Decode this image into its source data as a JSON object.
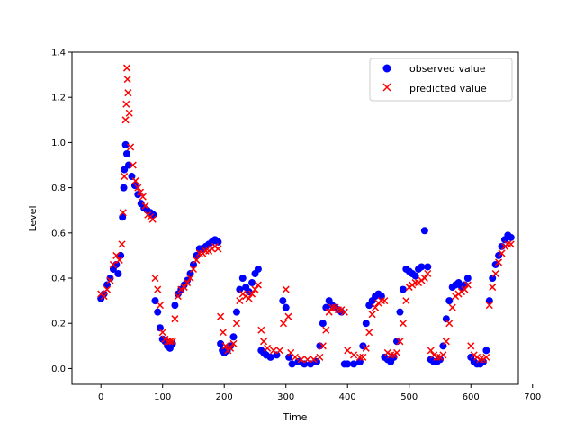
{
  "chart_data": {
    "type": "scatter",
    "title": "",
    "xlabel": "Time",
    "ylabel": "Level",
    "xlim": [
      -47,
      677
    ],
    "ylim": [
      -0.07,
      1.4
    ],
    "xticks": [
      0,
      100,
      200,
      300,
      400,
      500,
      600,
      700
    ],
    "yticks": [
      0.0,
      0.2,
      0.4,
      0.6,
      0.8,
      1.0,
      1.2,
      1.4
    ],
    "xtick_labels": [
      "0",
      "100",
      "200",
      "300",
      "400",
      "500",
      "600",
      "700"
    ],
    "ytick_labels": [
      "0.0",
      "0.2",
      "0.4",
      "0.6",
      "0.8",
      "1.0",
      "1.2",
      "1.4"
    ],
    "legend_position": "top-right",
    "grid": false,
    "series": [
      {
        "name": "observed value",
        "marker": "circle",
        "color": "#0000ff",
        "x": [
          0,
          5,
          10,
          15,
          20,
          25,
          28,
          32,
          35,
          37,
          38,
          40,
          42,
          45,
          50,
          55,
          60,
          65,
          70,
          75,
          80,
          85,
          88,
          92,
          96,
          100,
          104,
          108,
          112,
          116,
          120,
          125,
          130,
          135,
          140,
          145,
          150,
          155,
          160,
          165,
          170,
          175,
          180,
          185,
          190,
          194,
          197,
          200,
          205,
          210,
          215,
          220,
          225,
          230,
          235,
          240,
          245,
          250,
          255,
          260,
          264,
          268,
          275,
          285,
          295,
          300,
          305,
          310,
          320,
          330,
          340,
          350,
          355,
          360,
          365,
          370,
          375,
          380,
          385,
          390,
          395,
          400,
          410,
          420,
          425,
          430,
          435,
          440,
          445,
          450,
          455,
          460,
          465,
          470,
          475,
          480,
          485,
          490,
          495,
          500,
          505,
          510,
          515,
          520,
          525,
          530,
          535,
          540,
          545,
          550,
          555,
          560,
          565,
          570,
          575,
          580,
          585,
          590,
          595,
          600,
          605,
          610,
          615,
          620,
          625,
          630,
          635,
          640,
          645,
          650,
          655,
          660,
          665
        ],
        "y": [
          0.31,
          0.33,
          0.37,
          0.4,
          0.44,
          0.46,
          0.42,
          0.5,
          0.67,
          0.8,
          0.88,
          0.99,
          0.95,
          0.9,
          0.85,
          0.81,
          0.77,
          0.73,
          0.71,
          0.7,
          0.69,
          0.68,
          0.3,
          0.25,
          0.18,
          0.13,
          0.12,
          0.1,
          0.09,
          0.11,
          0.28,
          0.33,
          0.35,
          0.37,
          0.39,
          0.42,
          0.46,
          0.5,
          0.53,
          0.53,
          0.54,
          0.55,
          0.56,
          0.57,
          0.56,
          0.11,
          0.08,
          0.07,
          0.08,
          0.1,
          0.14,
          0.25,
          0.35,
          0.4,
          0.36,
          0.34,
          0.38,
          0.42,
          0.44,
          0.08,
          0.07,
          0.06,
          0.05,
          0.06,
          0.3,
          0.27,
          0.05,
          0.02,
          0.03,
          0.02,
          0.02,
          0.03,
          0.1,
          0.2,
          0.27,
          0.3,
          0.28,
          0.27,
          0.26,
          0.25,
          0.02,
          0.02,
          0.02,
          0.03,
          0.1,
          0.2,
          0.28,
          0.3,
          0.32,
          0.33,
          0.32,
          0.05,
          0.04,
          0.03,
          0.05,
          0.12,
          0.25,
          0.35,
          0.44,
          0.43,
          0.42,
          0.41,
          0.44,
          0.45,
          0.61,
          0.45,
          0.04,
          0.03,
          0.03,
          0.04,
          0.1,
          0.22,
          0.3,
          0.36,
          0.37,
          0.38,
          0.36,
          0.37,
          0.4,
          0.05,
          0.03,
          0.02,
          0.02,
          0.03,
          0.08,
          0.3,
          0.4,
          0.46,
          0.5,
          0.54,
          0.57,
          0.59,
          0.58
        ]
      },
      {
        "name": "predicted value",
        "marker": "x",
        "color": "#ff0000",
        "x": [
          0,
          5,
          10,
          15,
          20,
          25,
          30,
          34,
          36,
          38,
          40,
          41,
          42,
          43,
          44,
          46,
          48,
          52,
          56,
          60,
          64,
          68,
          72,
          76,
          80,
          84,
          88,
          92,
          96,
          100,
          104,
          108,
          112,
          116,
          120,
          125,
          130,
          135,
          140,
          145,
          150,
          155,
          160,
          165,
          170,
          175,
          180,
          185,
          190,
          194,
          198,
          202,
          206,
          210,
          215,
          220,
          225,
          230,
          235,
          240,
          245,
          250,
          255,
          260,
          264,
          270,
          280,
          290,
          296,
          300,
          304,
          308,
          315,
          325,
          335,
          345,
          355,
          360,
          365,
          370,
          375,
          380,
          385,
          390,
          395,
          400,
          410,
          420,
          425,
          430,
          435,
          440,
          445,
          450,
          455,
          460,
          465,
          470,
          475,
          480,
          485,
          490,
          495,
          500,
          505,
          510,
          515,
          520,
          525,
          530,
          535,
          540,
          545,
          550,
          555,
          560,
          565,
          570,
          575,
          580,
          585,
          590,
          595,
          600,
          605,
          610,
          615,
          620,
          625,
          630,
          635,
          640,
          645,
          650,
          655,
          660,
          665
        ],
        "y": [
          0.33,
          0.32,
          0.35,
          0.39,
          0.46,
          0.5,
          0.48,
          0.55,
          0.69,
          0.85,
          1.1,
          1.17,
          1.33,
          1.28,
          1.22,
          1.13,
          0.98,
          0.9,
          0.83,
          0.8,
          0.78,
          0.76,
          0.72,
          0.68,
          0.67,
          0.66,
          0.4,
          0.35,
          0.28,
          0.16,
          0.13,
          0.12,
          0.12,
          0.12,
          0.22,
          0.32,
          0.35,
          0.36,
          0.38,
          0.4,
          0.44,
          0.48,
          0.51,
          0.51,
          0.52,
          0.52,
          0.53,
          0.54,
          0.53,
          0.23,
          0.16,
          0.1,
          0.08,
          0.09,
          0.11,
          0.2,
          0.3,
          0.33,
          0.32,
          0.31,
          0.33,
          0.35,
          0.37,
          0.17,
          0.12,
          0.09,
          0.08,
          0.08,
          0.2,
          0.35,
          0.23,
          0.07,
          0.05,
          0.04,
          0.04,
          0.04,
          0.05,
          0.1,
          0.17,
          0.25,
          0.27,
          0.27,
          0.26,
          0.26,
          0.25,
          0.08,
          0.06,
          0.05,
          0.05,
          0.09,
          0.16,
          0.24,
          0.27,
          0.29,
          0.3,
          0.3,
          0.07,
          0.06,
          0.06,
          0.07,
          0.12,
          0.2,
          0.3,
          0.36,
          0.37,
          0.38,
          0.38,
          0.39,
          0.4,
          0.42,
          0.08,
          0.06,
          0.05,
          0.05,
          0.06,
          0.12,
          0.2,
          0.27,
          0.32,
          0.33,
          0.34,
          0.35,
          0.37,
          0.1,
          0.06,
          0.05,
          0.04,
          0.04,
          0.05,
          0.28,
          0.36,
          0.42,
          0.47,
          0.51,
          0.54,
          0.55,
          0.55
        ]
      }
    ]
  }
}
